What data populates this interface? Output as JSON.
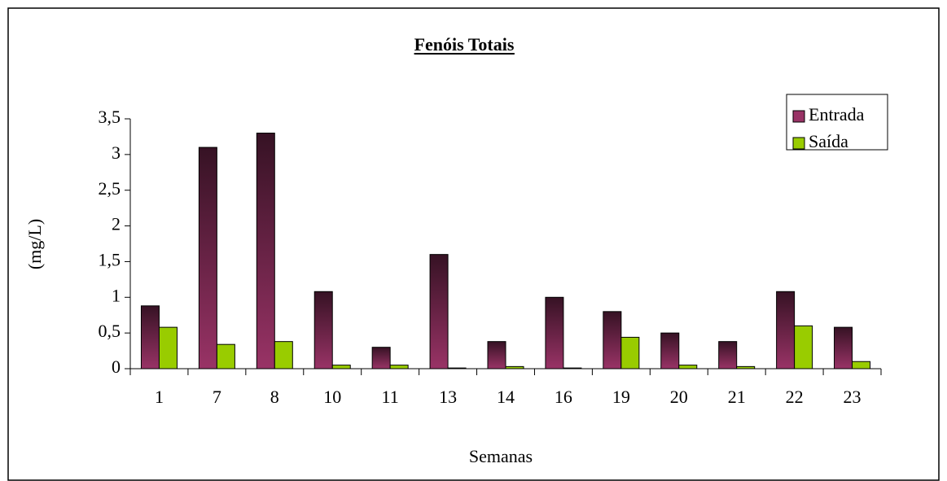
{
  "chart_data": {
    "type": "bar",
    "title": "Fenóis Totais",
    "x_label": "Semanas",
    "y_label": "(mg/L)",
    "categories": [
      "1",
      "7",
      "8",
      "10",
      "11",
      "13",
      "14",
      "16",
      "19",
      "20",
      "21",
      "22",
      "23"
    ],
    "series": [
      {
        "name": "Entrada",
        "color": "#993366",
        "values": [
          0.88,
          3.1,
          3.3,
          1.08,
          0.3,
          1.6,
          0.38,
          1.0,
          0.8,
          0.5,
          0.38,
          1.08,
          0.58
        ]
      },
      {
        "name": "Saída",
        "color": "#99cc00",
        "values": [
          0.58,
          0.34,
          0.38,
          0.05,
          0.05,
          0.01,
          0.03,
          0.01,
          0.44,
          0.05,
          0.03,
          0.6,
          0.1
        ]
      }
    ],
    "ylim": [
      0,
      3.5
    ],
    "yticks": [
      0,
      {
        "value": 0.5,
        "label": "0,5"
      },
      1,
      {
        "value": 1.5,
        "label": "1,5"
      },
      2,
      {
        "value": 2.5,
        "label": "2,5"
      },
      3,
      {
        "value": 3.5,
        "label": "3,5"
      }
    ],
    "grid": false,
    "legend": "upper right"
  }
}
